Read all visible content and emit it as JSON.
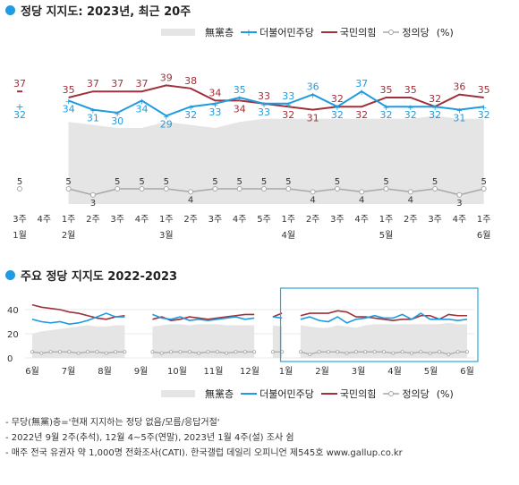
{
  "title1": "정당 지지도: 2023년, 최근 20주",
  "title2": "주요 정당 지지도 2022-2023",
  "legend": {
    "none": "無黨층",
    "dem": "더불어민주당",
    "ppp": "국민의힘",
    "justice": "정의당",
    "unit": "(%)"
  },
  "colors": {
    "dem": "#1f9be0",
    "ppp": "#a0303a",
    "justice": "#a8a8a8",
    "none": "#e5e5e5"
  },
  "chart_data": [
    {
      "type": "line",
      "x": [
        "3주",
        "4주",
        "1주",
        "2주",
        "3주",
        "4주",
        "1주",
        "2주",
        "3주",
        "4주",
        "5주",
        "1주",
        "2주",
        "3주",
        "4주",
        "1주",
        "2주",
        "3주",
        "4주",
        "1주"
      ],
      "months": [
        {
          "label": "1월",
          "at": 0
        },
        {
          "label": "2월",
          "at": 2
        },
        {
          "label": "3월",
          "at": 6
        },
        {
          "label": "4월",
          "at": 11
        },
        {
          "label": "5월",
          "at": 15
        },
        {
          "label": "6월",
          "at": 19
        }
      ],
      "series": [
        {
          "name": "더불어민주당",
          "values": [
            32,
            null,
            34,
            31,
            30,
            34,
            29,
            32,
            33,
            35,
            33,
            33,
            36,
            32,
            37,
            32,
            32,
            32,
            31,
            32
          ]
        },
        {
          "name": "국민의힘",
          "values": [
            37,
            null,
            35,
            37,
            37,
            37,
            39,
            38,
            34,
            34,
            33,
            32,
            31,
            32,
            32,
            35,
            35,
            32,
            36,
            35
          ]
        },
        {
          "name": "정의당",
          "values": [
            5,
            null,
            5,
            3,
            5,
            5,
            5,
            4,
            5,
            5,
            5,
            5,
            4,
            5,
            4,
            5,
            4,
            5,
            3,
            5
          ]
        },
        {
          "name": "無黨층",
          "values": [
            null,
            null,
            27,
            26,
            25,
            25,
            27,
            26,
            25,
            27,
            28,
            28,
            28,
            28,
            28,
            28,
            28,
            29,
            28,
            28
          ]
        }
      ]
    },
    {
      "type": "line",
      "x_labels": [
        "6월",
        "7월",
        "8월",
        "9월",
        "10월",
        "11월",
        "12월",
        "1월",
        "2월",
        "3월",
        "4월",
        "5월",
        "6월"
      ],
      "y_ticks": [
        0,
        20,
        40
      ],
      "ylim": [
        0,
        45
      ],
      "series": [
        {
          "name": "더불어민주당",
          "values": [
            32,
            30,
            29,
            30,
            28,
            29,
            31,
            34,
            37,
            34,
            34,
            null,
            null,
            36,
            33,
            32,
            34,
            31,
            32,
            31,
            32,
            33,
            34,
            32,
            33,
            null,
            34,
            33,
            null,
            32,
            34,
            31,
            30,
            34,
            29,
            32,
            33,
            35,
            33,
            33,
            36,
            32,
            37,
            32,
            32,
            32,
            31,
            32
          ]
        },
        {
          "name": "국민의힘",
          "values": [
            44,
            42,
            41,
            40,
            38,
            37,
            35,
            33,
            32,
            34,
            35,
            null,
            null,
            32,
            34,
            31,
            32,
            34,
            33,
            32,
            33,
            34,
            35,
            36,
            36,
            null,
            34,
            37,
            null,
            35,
            37,
            37,
            37,
            39,
            38,
            34,
            34,
            33,
            32,
            31,
            32,
            32,
            35,
            35,
            32,
            36,
            35,
            35
          ]
        },
        {
          "name": "정의당",
          "values": [
            5,
            4,
            5,
            5,
            5,
            4,
            5,
            5,
            4,
            5,
            5,
            null,
            null,
            5,
            4,
            5,
            5,
            5,
            4,
            5,
            5,
            4,
            5,
            5,
            5,
            null,
            5,
            5,
            null,
            5,
            3,
            5,
            5,
            5,
            4,
            5,
            5,
            5,
            5,
            4,
            5,
            4,
            5,
            4,
            5,
            3,
            5,
            5
          ]
        },
        {
          "name": "無黨층",
          "values": [
            20,
            22,
            23,
            24,
            25,
            26,
            27,
            26,
            26,
            27,
            27,
            null,
            null,
            26,
            27,
            28,
            28,
            27,
            28,
            28,
            28,
            27,
            27,
            27,
            27,
            null,
            27,
            26,
            null,
            27,
            26,
            25,
            25,
            27,
            26,
            25,
            27,
            28,
            28,
            28,
            28,
            28,
            28,
            28,
            28,
            29,
            28,
            28
          ]
        }
      ]
    }
  ],
  "notes": [
    "- 무당(無黨)층='현재 지지하는 정당 없음/모름/응답거절'",
    "- 2022년 9월 2주(추석), 12월 4~5주(연말), 2023년 1월 4주(설) 조사 쉼",
    "- 매주 전국 유권자 약 1,000명 전화조사(CATI). 한국갤럽 데일리 오피니언 제545호 www.gallup.co.kr"
  ]
}
